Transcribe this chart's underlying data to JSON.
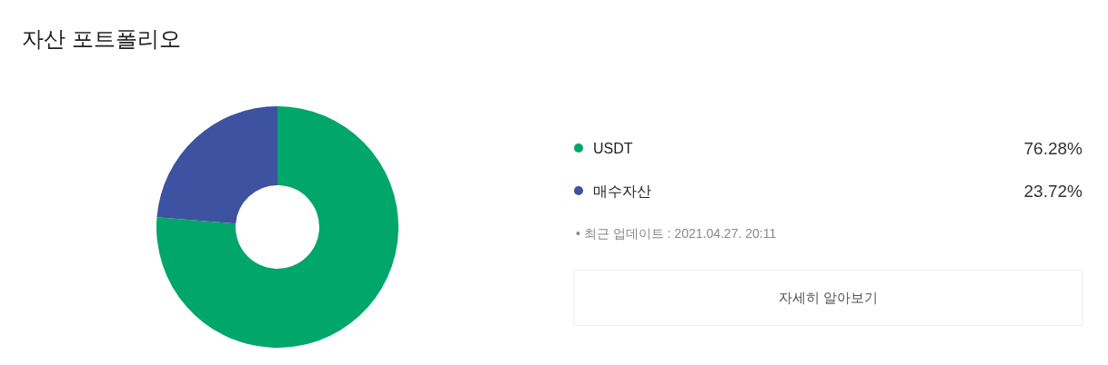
{
  "chart_data": {
    "type": "donut",
    "title": "자산 포트폴리오",
    "categories": [
      "USDT",
      "매수자산"
    ],
    "values": [
      76.28,
      23.72
    ],
    "value_labels": [
      "76.28%",
      "23.72%"
    ],
    "colors": [
      "#00a66a",
      "#3d52a0"
    ],
    "legend": "right",
    "annotations": [
      "• 최근 업데이트 : 2021.04.27. 20:11",
      "자세히 알아보기"
    ]
  }
}
